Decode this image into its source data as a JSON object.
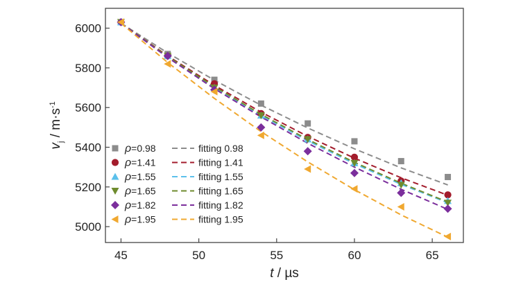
{
  "chart_data": {
    "type": "scatter",
    "title": "",
    "xlabel": {
      "symbol": "t",
      "rest": " / µs"
    },
    "ylabel": {
      "symbol": "v",
      "sub": "j",
      "rest": " / m·s",
      "sup": "-1"
    },
    "xlim": [
      44,
      67
    ],
    "ylim": [
      4920,
      6100
    ],
    "xticks": [
      45,
      50,
      55,
      60,
      65
    ],
    "yticks": [
      5000,
      5200,
      5400,
      5600,
      5800,
      6000
    ],
    "grid": false,
    "legend_position": "bottom-left",
    "x": [
      45,
      48,
      51,
      54,
      57,
      60,
      63,
      66
    ],
    "series": [
      {
        "name": "ρ=0.98",
        "label_prefix": "ρ",
        "label_rest": "=0.98",
        "marker": "square",
        "color": "#8c8c8c",
        "values": [
          6030,
          5870,
          5740,
          5620,
          5520,
          5430,
          5330,
          5250
        ]
      },
      {
        "name": "ρ=1.41",
        "label_prefix": "ρ",
        "label_rest": "=1.41",
        "marker": "circle",
        "color": "#a31c2c",
        "values": [
          6030,
          5860,
          5720,
          5570,
          5450,
          5350,
          5230,
          5160
        ]
      },
      {
        "name": "ρ=1.55",
        "label_prefix": "ρ",
        "label_rest": "=1.55",
        "marker": "triangle-up",
        "color": "#5bc0eb",
        "values": [
          6030,
          5860,
          5700,
          5560,
          5440,
          5320,
          5220,
          5130
        ]
      },
      {
        "name": "ρ=1.65",
        "label_prefix": "ρ",
        "label_rest": "=1.65",
        "marker": "triangle-down",
        "color": "#6e8b2e",
        "values": [
          6030,
          5860,
          5700,
          5560,
          5440,
          5320,
          5210,
          5120
        ]
      },
      {
        "name": "ρ=1.82",
        "label_prefix": "ρ",
        "label_rest": "=1.82",
        "marker": "diamond",
        "color": "#7b2e9c",
        "values": [
          6030,
          5860,
          5690,
          5500,
          5380,
          5270,
          5170,
          5090
        ]
      },
      {
        "name": "ρ=1.95",
        "label_prefix": "ρ",
        "label_rest": "=1.95",
        "marker": "triangle-left",
        "color": "#f0a830",
        "values": [
          6030,
          5820,
          5680,
          5460,
          5290,
          5190,
          5100,
          4950
        ]
      }
    ],
    "fits": [
      {
        "name": "fitting 0.98",
        "color": "#8c8c8c",
        "values": [
          6025,
          5875,
          5738,
          5612,
          5497,
          5392,
          5296,
          5210
        ]
      },
      {
        "name": "fitting 1.41",
        "color": "#a31c2c",
        "values": [
          6025,
          5860,
          5712,
          5577,
          5455,
          5345,
          5246,
          5158
        ]
      },
      {
        "name": "fitting 1.55",
        "color": "#5bc0eb",
        "values": [
          6025,
          5855,
          5700,
          5560,
          5432,
          5317,
          5213,
          5120
        ]
      },
      {
        "name": "fitting 1.65",
        "color": "#6e8b2e",
        "values": [
          6025,
          5857,
          5705,
          5566,
          5439,
          5324,
          5219,
          5124
        ]
      },
      {
        "name": "fitting 1.82",
        "color": "#7b2e9c",
        "values": [
          6025,
          5852,
          5695,
          5553,
          5420,
          5300,
          5188,
          5087
        ]
      },
      {
        "name": "fitting 1.95",
        "color": "#f0a830",
        "values": [
          6025,
          5827,
          5646,
          5479,
          5326,
          5186,
          5059,
          4947
        ]
      }
    ]
  }
}
